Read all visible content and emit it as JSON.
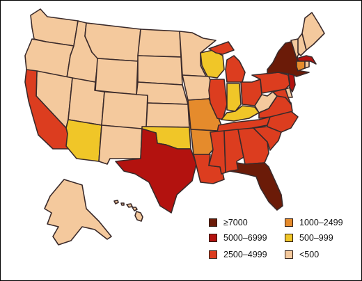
{
  "legend": {
    "items": [
      {
        "id": "b7000",
        "label": "≥7000",
        "color": "#6b1b08"
      },
      {
        "id": "b5000",
        "label": "5000–6999",
        "color": "#b3120f"
      },
      {
        "id": "b2500",
        "label": "2500–4999",
        "color": "#dc3d1f"
      },
      {
        "id": "b1000",
        "label": "1000–2499",
        "color": "#e58b2c"
      },
      {
        "id": "b500",
        "label": "500–999",
        "color": "#f0c628"
      },
      {
        "id": "b0",
        "label": "<500",
        "color": "#f4c99d"
      }
    ]
  },
  "map_data": {
    "type": "choropleth",
    "region": "United States",
    "states": {
      "NY": "b7000",
      "FL": "b7000",
      "TX": "b5000",
      "NJ": "b5000",
      "MA": "b5000",
      "CA": "b2500",
      "IL": "b2500",
      "MI": "b2500",
      "OH": "b2500",
      "PA": "b2500",
      "GA": "b2500",
      "NC": "b2500",
      "SC": "b2500",
      "VA": "b2500",
      "AL": "b2500",
      "MS": "b2500",
      "LA": "b2500",
      "MD": "b2500",
      "TN": "b2500",
      "MO": "b1000",
      "AR": "b1000",
      "CT": "b1000",
      "AZ": "b500",
      "OK": "b500",
      "WI": "b500",
      "IN": "b500",
      "KY": "b500",
      "WA": "b0",
      "OR": "b0",
      "ID": "b0",
      "MT": "b0",
      "WY": "b0",
      "NV": "b0",
      "UT": "b0",
      "CO": "b0",
      "NM": "b0",
      "ND": "b0",
      "SD": "b0",
      "NE": "b0",
      "KS": "b0",
      "MN": "b0",
      "IA": "b0",
      "WV": "b0",
      "ME": "b0",
      "NH": "b0",
      "VT": "b0",
      "RI": "b0",
      "DE": "b0",
      "AK": "b0",
      "HI": "b0"
    }
  }
}
